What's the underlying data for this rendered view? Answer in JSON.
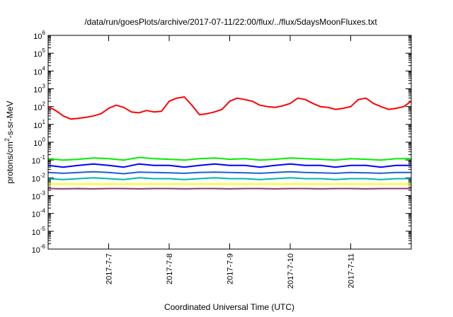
{
  "chart_data": {
    "type": "line",
    "title": "/data/run/goesPlots/archive/2017-07-11/22:00/flux/../flux/5daysMoonFluxes.txt",
    "xlabel": "Coordinated Universal Time (UTC)",
    "ylabel": {
      "prefix": "protons/cm",
      "superscript": "2",
      "suffix": "-s-sr-MeV"
    },
    "y_scale": "log",
    "ylim": [
      1e-06,
      1000000.0
    ],
    "y_ticks": [
      {
        "value": 1e-06,
        "base": "10",
        "exp": "-6"
      },
      {
        "value": 1e-05,
        "base": "10",
        "exp": "-5"
      },
      {
        "value": 0.0001,
        "base": "10",
        "exp": "-4"
      },
      {
        "value": 0.001,
        "base": "10",
        "exp": "-3"
      },
      {
        "value": 0.01,
        "base": "10",
        "exp": "-2"
      },
      {
        "value": 0.1,
        "base": "10",
        "exp": "-1"
      },
      {
        "value": 1.0,
        "base": "10",
        "exp": "0"
      },
      {
        "value": 10.0,
        "base": "10",
        "exp": "1"
      },
      {
        "value": 100.0,
        "base": "10",
        "exp": "2"
      },
      {
        "value": 1000.0,
        "base": "10",
        "exp": "3"
      },
      {
        "value": 10000.0,
        "base": "10",
        "exp": "4"
      },
      {
        "value": 100000.0,
        "base": "10",
        "exp": "5"
      },
      {
        "value": 1000000.0,
        "base": "10",
        "exp": "6"
      }
    ],
    "xlim": [
      "2017-07-06T00:00",
      "2017-07-12T00:00"
    ],
    "x_ticks": [
      "2017-7-7",
      "2017-7-8",
      "2017-7-9",
      "2017-7-10",
      "2017-7-11"
    ],
    "grid": false,
    "series": [
      {
        "color": "#ff0000",
        "x": [
          "2017-07-06T00:00",
          "2017-07-06T03:00",
          "2017-07-06T06:00",
          "2017-07-06T09:00",
          "2017-07-06T12:00",
          "2017-07-06T15:00",
          "2017-07-06T18:00",
          "2017-07-06T21:00",
          "2017-07-07T00:00",
          "2017-07-07T03:00",
          "2017-07-07T06:00",
          "2017-07-07T09:00",
          "2017-07-07T12:00",
          "2017-07-07T15:00",
          "2017-07-07T18:00",
          "2017-07-07T21:00",
          "2017-07-08T00:00",
          "2017-07-08T03:00",
          "2017-07-08T06:00",
          "2017-07-08T09:00",
          "2017-07-08T12:00",
          "2017-07-08T15:00",
          "2017-07-08T18:00",
          "2017-07-08T21:00",
          "2017-07-09T00:00",
          "2017-07-09T03:00",
          "2017-07-09T06:00",
          "2017-07-09T09:00",
          "2017-07-09T12:00",
          "2017-07-09T15:00",
          "2017-07-09T18:00",
          "2017-07-09T21:00",
          "2017-07-10T00:00",
          "2017-07-10T03:00",
          "2017-07-10T06:00",
          "2017-07-10T09:00",
          "2017-07-10T12:00",
          "2017-07-10T15:00",
          "2017-07-10T18:00",
          "2017-07-10T21:00",
          "2017-07-11T00:00",
          "2017-07-11T03:00",
          "2017-07-11T06:00",
          "2017-07-11T09:00",
          "2017-07-11T12:00",
          "2017-07-11T15:00",
          "2017-07-11T18:00",
          "2017-07-11T21:00",
          "2017-07-12T00:00"
        ],
        "values": [
          100,
          60,
          30,
          20,
          22,
          25,
          30,
          40,
          80,
          120,
          90,
          50,
          45,
          60,
          50,
          55,
          200,
          300,
          350,
          120,
          35,
          40,
          50,
          70,
          200,
          300,
          250,
          200,
          120,
          100,
          90,
          110,
          150,
          300,
          250,
          150,
          100,
          90,
          70,
          80,
          100,
          250,
          300,
          150,
          100,
          70,
          80,
          100,
          200
        ]
      },
      {
        "color": "#00ee00",
        "x": [
          "2017-07-06T00:00",
          "2017-07-06T06:00",
          "2017-07-06T12:00",
          "2017-07-06T18:00",
          "2017-07-07T00:00",
          "2017-07-07T06:00",
          "2017-07-07T12:00",
          "2017-07-07T18:00",
          "2017-07-08T00:00",
          "2017-07-08T06:00",
          "2017-07-08T12:00",
          "2017-07-08T18:00",
          "2017-07-09T00:00",
          "2017-07-09T06:00",
          "2017-07-09T12:00",
          "2017-07-09T18:00",
          "2017-07-10T00:00",
          "2017-07-10T06:00",
          "2017-07-10T12:00",
          "2017-07-10T18:00",
          "2017-07-11T00:00",
          "2017-07-11T06:00",
          "2017-07-11T12:00",
          "2017-07-11T18:00",
          "2017-07-12T00:00"
        ],
        "values": [
          0.12,
          0.1,
          0.11,
          0.13,
          0.12,
          0.1,
          0.14,
          0.12,
          0.11,
          0.1,
          0.12,
          0.13,
          0.11,
          0.12,
          0.1,
          0.11,
          0.13,
          0.12,
          0.11,
          0.1,
          0.12,
          0.11,
          0.1,
          0.12,
          0.12
        ]
      },
      {
        "color": "#0000ff",
        "x": [
          "2017-07-06T00:00",
          "2017-07-06T06:00",
          "2017-07-06T12:00",
          "2017-07-06T18:00",
          "2017-07-07T00:00",
          "2017-07-07T06:00",
          "2017-07-07T12:00",
          "2017-07-07T18:00",
          "2017-07-08T00:00",
          "2017-07-08T06:00",
          "2017-07-08T12:00",
          "2017-07-08T18:00",
          "2017-07-09T00:00",
          "2017-07-09T06:00",
          "2017-07-09T12:00",
          "2017-07-09T18:00",
          "2017-07-10T00:00",
          "2017-07-10T06:00",
          "2017-07-10T12:00",
          "2017-07-10T18:00",
          "2017-07-11T00:00",
          "2017-07-11T06:00",
          "2017-07-11T12:00",
          "2017-07-11T18:00",
          "2017-07-12T00:00"
        ],
        "values": [
          0.05,
          0.04,
          0.05,
          0.06,
          0.05,
          0.04,
          0.06,
          0.05,
          0.05,
          0.04,
          0.05,
          0.06,
          0.05,
          0.05,
          0.04,
          0.05,
          0.06,
          0.05,
          0.05,
          0.04,
          0.05,
          0.05,
          0.04,
          0.05,
          0.05
        ]
      },
      {
        "color": "#1f5fd6",
        "x": [
          "2017-07-06T00:00",
          "2017-07-06T06:00",
          "2017-07-06T12:00",
          "2017-07-06T18:00",
          "2017-07-07T00:00",
          "2017-07-07T06:00",
          "2017-07-07T12:00",
          "2017-07-07T18:00",
          "2017-07-08T00:00",
          "2017-07-08T06:00",
          "2017-07-08T12:00",
          "2017-07-08T18:00",
          "2017-07-09T00:00",
          "2017-07-09T06:00",
          "2017-07-09T12:00",
          "2017-07-09T18:00",
          "2017-07-10T00:00",
          "2017-07-10T06:00",
          "2017-07-10T12:00",
          "2017-07-10T18:00",
          "2017-07-11T00:00",
          "2017-07-11T06:00",
          "2017-07-11T12:00",
          "2017-07-11T18:00",
          "2017-07-12T00:00"
        ],
        "values": [
          0.02,
          0.018,
          0.02,
          0.022,
          0.02,
          0.017,
          0.021,
          0.02,
          0.019,
          0.018,
          0.02,
          0.021,
          0.02,
          0.019,
          0.018,
          0.02,
          0.022,
          0.02,
          0.019,
          0.018,
          0.02,
          0.019,
          0.018,
          0.02,
          0.02
        ]
      },
      {
        "color": "#00b4b4",
        "x": [
          "2017-07-06T00:00",
          "2017-07-06T06:00",
          "2017-07-06T12:00",
          "2017-07-06T18:00",
          "2017-07-07T00:00",
          "2017-07-07T06:00",
          "2017-07-07T12:00",
          "2017-07-07T18:00",
          "2017-07-08T00:00",
          "2017-07-08T06:00",
          "2017-07-08T12:00",
          "2017-07-08T18:00",
          "2017-07-09T00:00",
          "2017-07-09T06:00",
          "2017-07-09T12:00",
          "2017-07-09T18:00",
          "2017-07-10T00:00",
          "2017-07-10T06:00",
          "2017-07-10T12:00",
          "2017-07-10T18:00",
          "2017-07-11T00:00",
          "2017-07-11T06:00",
          "2017-07-11T12:00",
          "2017-07-11T18:00",
          "2017-07-12T00:00"
        ],
        "values": [
          0.009,
          0.008,
          0.009,
          0.01,
          0.009,
          0.008,
          0.01,
          0.009,
          0.009,
          0.008,
          0.009,
          0.01,
          0.009,
          0.009,
          0.008,
          0.009,
          0.01,
          0.009,
          0.009,
          0.008,
          0.009,
          0.009,
          0.008,
          0.009,
          0.009
        ]
      },
      {
        "color": "#ffff00",
        "x": [
          "2017-07-06T00:00",
          "2017-07-07T00:00",
          "2017-07-08T00:00",
          "2017-07-09T00:00",
          "2017-07-10T00:00",
          "2017-07-11T00:00",
          "2017-07-12T00:00"
        ],
        "values": [
          0.0045,
          0.0045,
          0.0045,
          0.0045,
          0.0045,
          0.0045,
          0.0045
        ]
      },
      {
        "color": "#8b3a62",
        "x": [
          "2017-07-06T00:00",
          "2017-07-06T06:00",
          "2017-07-06T12:00",
          "2017-07-06T18:00",
          "2017-07-07T00:00",
          "2017-07-07T06:00",
          "2017-07-07T12:00",
          "2017-07-07T18:00",
          "2017-07-08T00:00",
          "2017-07-08T06:00",
          "2017-07-08T12:00",
          "2017-07-08T18:00",
          "2017-07-09T00:00",
          "2017-07-09T06:00",
          "2017-07-09T12:00",
          "2017-07-09T18:00",
          "2017-07-10T00:00",
          "2017-07-10T06:00",
          "2017-07-10T12:00",
          "2017-07-10T18:00",
          "2017-07-11T00:00",
          "2017-07-11T06:00",
          "2017-07-11T12:00",
          "2017-07-11T18:00",
          "2017-07-12T00:00"
        ],
        "values": [
          0.0025,
          0.0024,
          0.0025,
          0.0024,
          0.0025,
          0.0025,
          0.0024,
          0.0025,
          0.0025,
          0.0024,
          0.0025,
          0.0025,
          0.0024,
          0.0025,
          0.0025,
          0.0024,
          0.0025,
          0.0025,
          0.0024,
          0.0025,
          0.0025,
          0.0024,
          0.0025,
          0.0025,
          0.0025
        ]
      }
    ]
  }
}
